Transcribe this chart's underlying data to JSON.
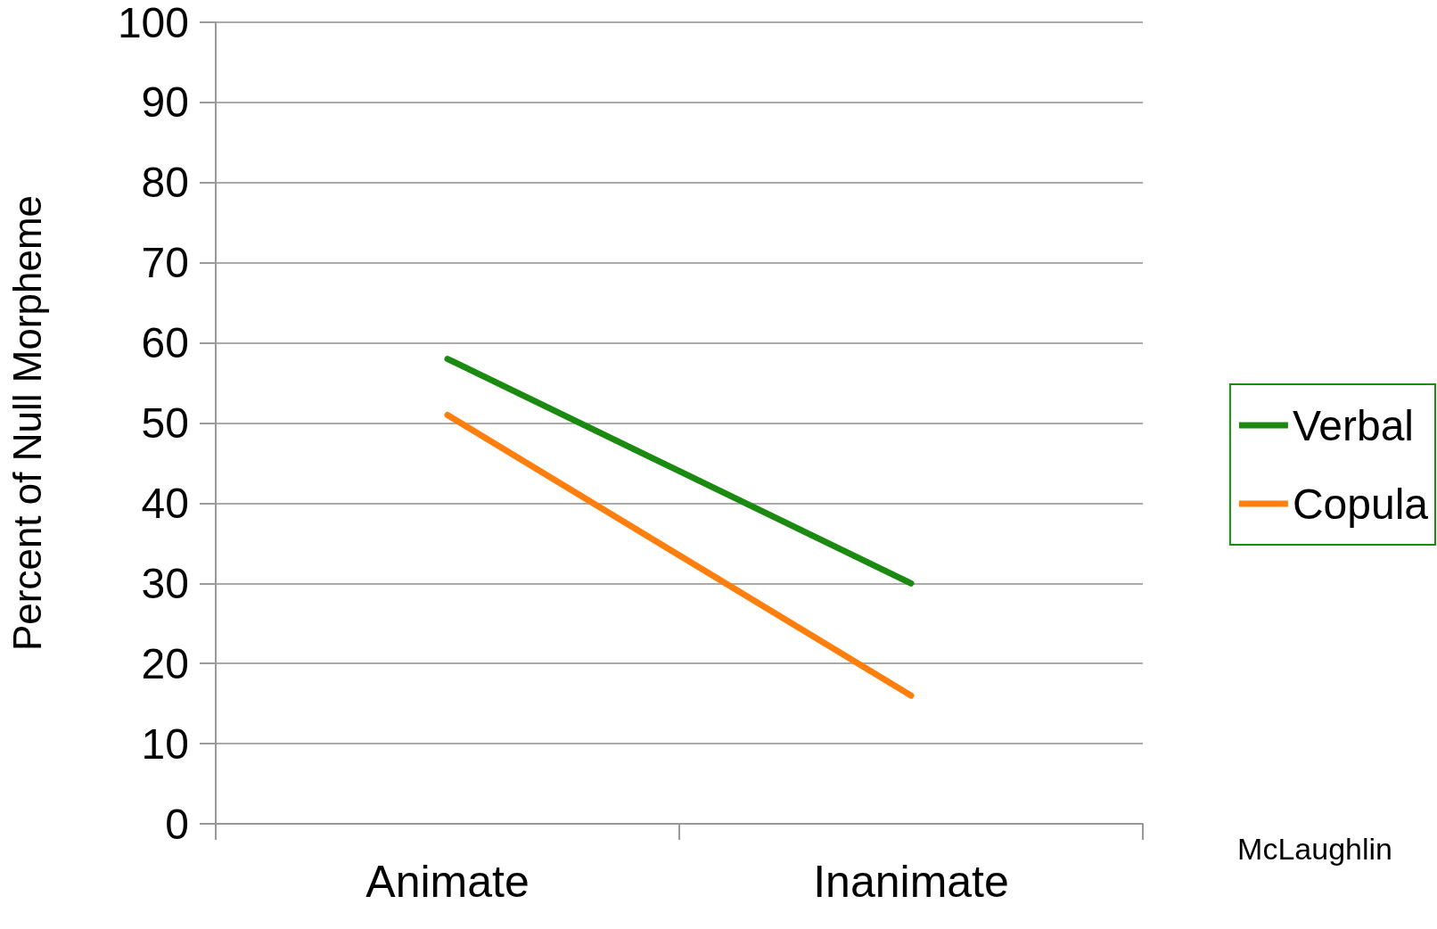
{
  "chart_data": {
    "type": "line",
    "ylabel": "Percent of Null Morpheme",
    "categories": [
      "Animate",
      "Inanimate"
    ],
    "series": [
      {
        "name": "Verbal",
        "color": "#1a8a10",
        "values": [
          58,
          30
        ]
      },
      {
        "name": "Copula",
        "color": "#ff7f0e",
        "values": [
          51,
          16
        ]
      }
    ],
    "ylim": [
      0,
      100
    ],
    "yticks": [
      0,
      10,
      20,
      30,
      40,
      50,
      60,
      70,
      80,
      90,
      100
    ],
    "grid": "y",
    "legend": "right",
    "marker": "none",
    "line_style": "solid",
    "annotations": [
      "McLaughlin"
    ]
  }
}
